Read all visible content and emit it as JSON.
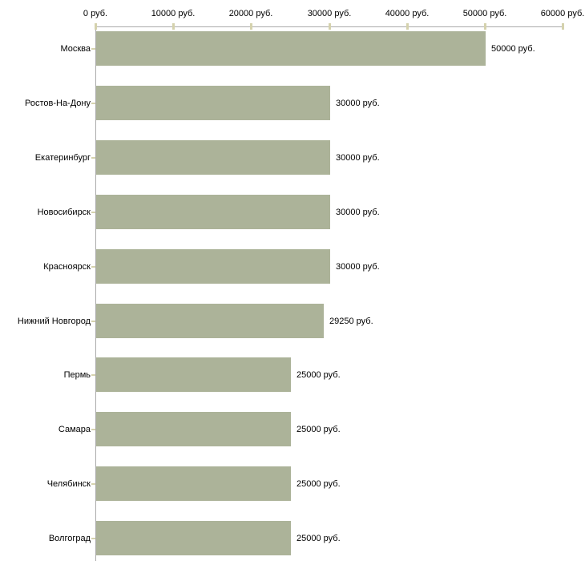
{
  "chart_data": {
    "type": "bar",
    "orientation": "horizontal",
    "title": "",
    "xlabel": "",
    "ylabel": "",
    "unit": "руб.",
    "xlim": [
      0,
      60000
    ],
    "grid": false,
    "legend": null,
    "categories": [
      "Москва",
      "Ростов-На-Дону",
      "Екатеринбург",
      "Новосибирск",
      "Красноярск",
      "Нижний Новгород",
      "Пермь",
      "Самара",
      "Челябинск",
      "Волгоград"
    ],
    "values": [
      50000,
      30000,
      30000,
      30000,
      30000,
      29250,
      25000,
      25000,
      25000,
      25000
    ],
    "value_labels": [
      "50000 руб.",
      "30000 руб.",
      "30000 руб.",
      "30000 руб.",
      "30000 руб.",
      "29250 руб.",
      "25000 руб.",
      "25000 руб.",
      "25000 руб.",
      "25000 руб."
    ],
    "x_ticks": [
      {
        "value": 0,
        "label": "0 руб."
      },
      {
        "value": 10000,
        "label": "10000 руб."
      },
      {
        "value": 20000,
        "label": "20000 руб."
      },
      {
        "value": 30000,
        "label": "30000 руб."
      },
      {
        "value": 40000,
        "label": "40000 руб."
      },
      {
        "value": 50000,
        "label": "50000 руб."
      },
      {
        "value": 60000,
        "label": "60000 руб."
      }
    ],
    "colors": {
      "bar_fill": "#acb399",
      "axis_line": "#ababab",
      "tick_mark": "#d5d2ad",
      "text": "#000000",
      "background": "#ffffff"
    }
  }
}
